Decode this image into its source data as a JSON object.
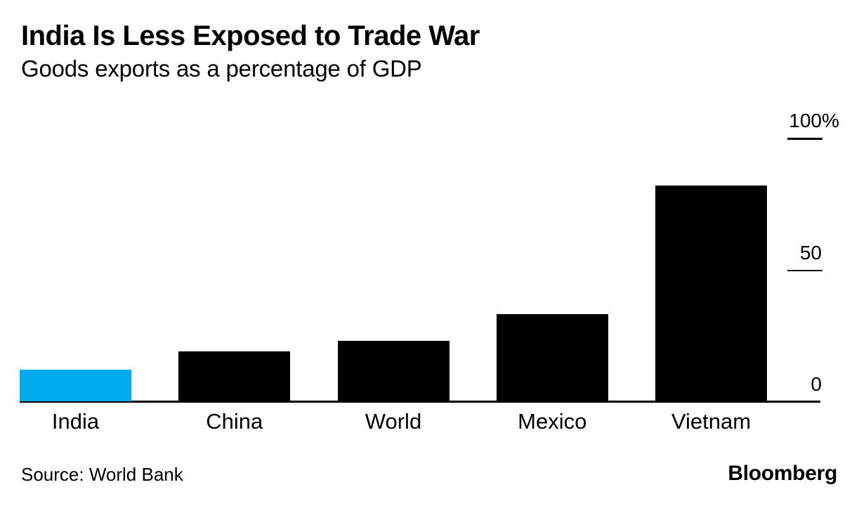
{
  "header": {
    "title": "India Is Less Exposed to Trade War",
    "subtitle": "Goods exports as a percentage of GDP"
  },
  "footer": {
    "source": "Source: World Bank",
    "brand": "Bloomberg"
  },
  "chart_data": {
    "type": "bar",
    "title": "India Is Less Exposed to Trade War",
    "subtitle": "Goods exports as a percentage of GDP",
    "categories": [
      "India",
      "China",
      "World",
      "Mexico",
      "Vietnam"
    ],
    "values": [
      12,
      19,
      23,
      33,
      82
    ],
    "unit": "%",
    "ylabel": "",
    "xlabel": "",
    "ylim": [
      0,
      100
    ],
    "grid": false,
    "legend": "none",
    "axis_side": "right",
    "yticks": [
      {
        "value": 0,
        "label": "0",
        "suffix": ""
      },
      {
        "value": 50,
        "label": "50",
        "suffix": ""
      },
      {
        "value": 100,
        "label": "100",
        "suffix": "%"
      }
    ],
    "highlight_index": 0,
    "colors": {
      "highlight": "#00aaef",
      "default": "#000000",
      "axis": "#000000",
      "text": "#000000",
      "background": "#ffffff"
    }
  }
}
